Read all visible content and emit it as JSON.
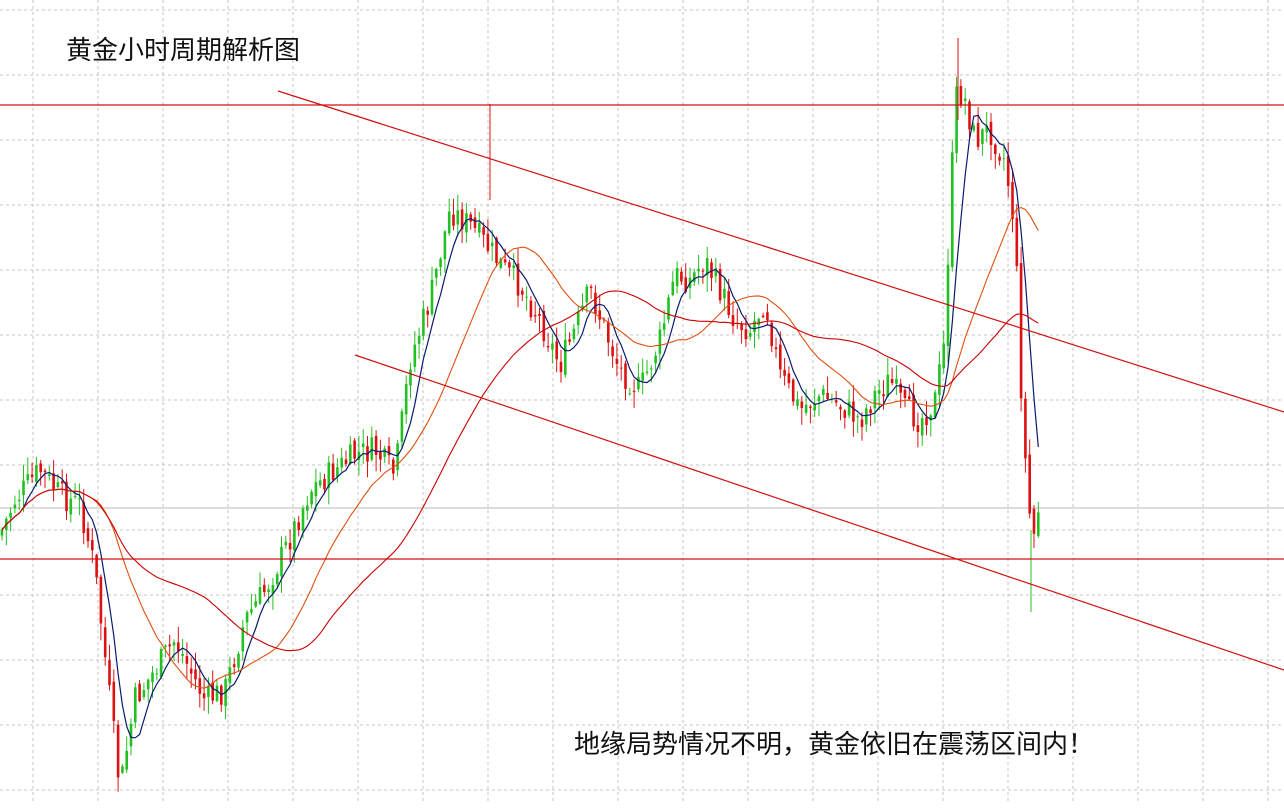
{
  "page": {
    "title": "黄金小时周期解析图",
    "annotation": "地缘局势情况不明，黄金依旧在震荡区间内！"
  },
  "chart_data": {
    "type": "candlestick",
    "title": "黄金小时周期解析图",
    "annotations": [
      "地缘局势情况不明，黄金依旧在震荡区间内！"
    ],
    "grid": true,
    "legend": "none",
    "axes_visible": false,
    "colors": {
      "up_candle": "#22c022",
      "down_candle": "#dd1111",
      "fast_ma": "#0a1a6e",
      "slow_ma": "#e05010",
      "long_ma": "#cc0000",
      "horizontal_levels": "#d01010",
      "channel": "#d01010",
      "grid": "#c4c4c4"
    },
    "overlays": {
      "horizontal_levels": 2,
      "channel_lines": 3,
      "moving_averages": 3
    },
    "price_path": [
      [
        0,
        535
      ],
      [
        15,
        500
      ],
      [
        40,
        470
      ],
      [
        60,
        495
      ],
      [
        80,
        505
      ],
      [
        95,
        570
      ],
      [
        110,
        700
      ],
      [
        120,
        790
      ],
      [
        135,
        700
      ],
      [
        155,
        670
      ],
      [
        175,
        640
      ],
      [
        190,
        670
      ],
      [
        205,
        700
      ],
      [
        225,
        690
      ],
      [
        245,
        620
      ],
      [
        265,
        590
      ],
      [
        285,
        550
      ],
      [
        310,
        490
      ],
      [
        335,
        470
      ],
      [
        355,
        455
      ],
      [
        375,
        450
      ],
      [
        395,
        475
      ],
      [
        410,
        360
      ],
      [
        430,
        300
      ],
      [
        450,
        210
      ],
      [
        470,
        225
      ],
      [
        490,
        250
      ],
      [
        505,
        270
      ],
      [
        520,
        285
      ],
      [
        540,
        320
      ],
      [
        560,
        365
      ],
      [
        575,
        330
      ],
      [
        590,
        290
      ],
      [
        605,
        330
      ],
      [
        620,
        370
      ],
      [
        640,
        390
      ],
      [
        660,
        340
      ],
      [
        675,
        275
      ],
      [
        690,
        280
      ],
      [
        705,
        260
      ],
      [
        720,
        290
      ],
      [
        735,
        320
      ],
      [
        750,
        330
      ],
      [
        765,
        300
      ],
      [
        780,
        375
      ],
      [
        800,
        410
      ],
      [
        820,
        395
      ],
      [
        840,
        405
      ],
      [
        860,
        420
      ],
      [
        875,
        395
      ],
      [
        890,
        380
      ],
      [
        905,
        410
      ],
      [
        920,
        420
      ],
      [
        935,
        400
      ],
      [
        945,
        340
      ],
      [
        950,
        200
      ],
      [
        957,
        90
      ],
      [
        965,
        100
      ],
      [
        975,
        140
      ],
      [
        990,
        130
      ],
      [
        1005,
        160
      ],
      [
        1015,
        230
      ],
      [
        1022,
        410
      ],
      [
        1028,
        500
      ],
      [
        1033,
        540
      ],
      [
        1040,
        500
      ]
    ]
  }
}
